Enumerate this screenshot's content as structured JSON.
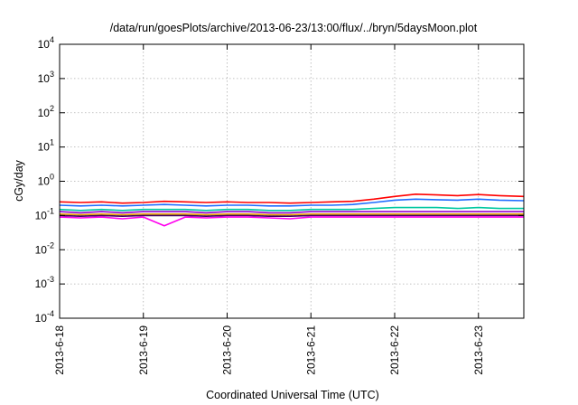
{
  "chart_data": {
    "type": "line",
    "title": "/data/run/goesPlots/archive/2013-06-23/13:00/flux/../bryn/5daysMoon.plot",
    "xlabel": "Coordinated Universal Time (UTC)",
    "ylabel": "cGy/day",
    "yscale": "log",
    "ylim": [
      0.0001,
      10000
    ],
    "xlim": [
      "2013-06-18 00:00",
      "2013-06-23 13:00"
    ],
    "grid": true,
    "x_ticks": [
      "2013-6-18",
      "2013-6-19",
      "2013-6-20",
      "2013-6-21",
      "2013-6-22",
      "2013-6-23"
    ],
    "y_ticks": [
      {
        "value": 0.0001,
        "base": "10",
        "exp": "-4"
      },
      {
        "value": 0.001,
        "base": "10",
        "exp": "-3"
      },
      {
        "value": 0.01,
        "base": "10",
        "exp": "-2"
      },
      {
        "value": 0.1,
        "base": "10",
        "exp": "-1"
      },
      {
        "value": 1,
        "base": "10",
        "exp": "0"
      },
      {
        "value": 10,
        "base": "10",
        "exp": "1"
      },
      {
        "value": 100,
        "base": "10",
        "exp": "2"
      },
      {
        "value": 1000,
        "base": "10",
        "exp": "3"
      },
      {
        "value": 10000,
        "base": "10",
        "exp": "4"
      }
    ],
    "x": [
      "2013-06-18 00:00",
      "2013-06-18 06:00",
      "2013-06-18 12:00",
      "2013-06-18 18:00",
      "2013-06-19 00:00",
      "2013-06-19 06:00",
      "2013-06-19 12:00",
      "2013-06-19 18:00",
      "2013-06-20 00:00",
      "2013-06-20 06:00",
      "2013-06-20 12:00",
      "2013-06-20 18:00",
      "2013-06-21 00:00",
      "2013-06-21 06:00",
      "2013-06-21 12:00",
      "2013-06-21 18:00",
      "2013-06-22 00:00",
      "2013-06-22 06:00",
      "2013-06-22 12:00",
      "2013-06-22 18:00",
      "2013-06-23 00:00",
      "2013-06-23 06:00",
      "2013-06-23 13:00"
    ],
    "series": [
      {
        "color": "#ff0000",
        "values": [
          0.25,
          0.24,
          0.25,
          0.23,
          0.24,
          0.26,
          0.25,
          0.24,
          0.25,
          0.24,
          0.24,
          0.23,
          0.24,
          0.25,
          0.26,
          0.3,
          0.36,
          0.42,
          0.4,
          0.38,
          0.41,
          0.38,
          0.36
        ]
      },
      {
        "color": "#1e6cff",
        "values": [
          0.2,
          0.19,
          0.2,
          0.19,
          0.2,
          0.21,
          0.2,
          0.19,
          0.2,
          0.2,
          0.19,
          0.19,
          0.2,
          0.2,
          0.21,
          0.24,
          0.28,
          0.3,
          0.29,
          0.28,
          0.3,
          0.28,
          0.27
        ]
      },
      {
        "color": "#00c8a0",
        "values": [
          0.15,
          0.14,
          0.15,
          0.14,
          0.15,
          0.15,
          0.15,
          0.14,
          0.15,
          0.15,
          0.14,
          0.14,
          0.15,
          0.15,
          0.15,
          0.16,
          0.17,
          0.17,
          0.17,
          0.16,
          0.17,
          0.16,
          0.16
        ]
      },
      {
        "color": "#9900cc",
        "values": [
          0.13,
          0.12,
          0.13,
          0.12,
          0.13,
          0.13,
          0.13,
          0.12,
          0.13,
          0.13,
          0.12,
          0.12,
          0.13,
          0.13,
          0.13,
          0.13,
          0.13,
          0.13,
          0.13,
          0.13,
          0.13,
          0.13,
          0.13
        ]
      },
      {
        "color": "#e6a000",
        "values": [
          0.11,
          0.105,
          0.11,
          0.105,
          0.11,
          0.11,
          0.11,
          0.105,
          0.11,
          0.11,
          0.105,
          0.105,
          0.11,
          0.11,
          0.11,
          0.11,
          0.11,
          0.11,
          0.11,
          0.11,
          0.11,
          0.11,
          0.11
        ]
      },
      {
        "color": "#400060",
        "values": [
          0.1,
          0.095,
          0.1,
          0.095,
          0.1,
          0.1,
          0.1,
          0.095,
          0.1,
          0.1,
          0.095,
          0.095,
          0.1,
          0.1,
          0.1,
          0.1,
          0.1,
          0.1,
          0.1,
          0.1,
          0.1,
          0.1,
          0.1
        ]
      },
      {
        "color": "#ff00ee",
        "values": [
          0.09,
          0.085,
          0.09,
          0.08,
          0.09,
          0.05,
          0.09,
          0.085,
          0.09,
          0.09,
          0.085,
          0.08,
          0.09,
          0.09,
          0.09,
          0.09,
          0.09,
          0.09,
          0.09,
          0.09,
          0.09,
          0.09,
          0.09
        ]
      }
    ]
  }
}
